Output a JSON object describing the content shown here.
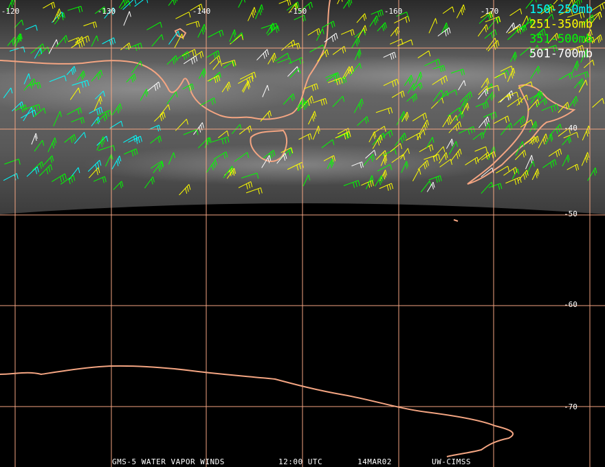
{
  "longitude_labels": [
    "-120",
    "-130",
    "-140",
    "-150",
    "-160",
    "-170"
  ],
  "latitude_labels": [
    "-40",
    "-50",
    "-60",
    "-70"
  ],
  "legend": [
    {
      "label": "150-250mb",
      "color": "#00ffff"
    },
    {
      "label": "251-350mb",
      "color": "#ffff00"
    },
    {
      "label": "351-500mb",
      "color": "#00ff00"
    },
    {
      "label": "501-700mb",
      "color": "#ffffff"
    }
  ],
  "footer": [
    "GMS-5 WATER VAPOR WINDS",
    "12:00 UTC",
    "14MAR02",
    "UW-CIMSS"
  ]
}
